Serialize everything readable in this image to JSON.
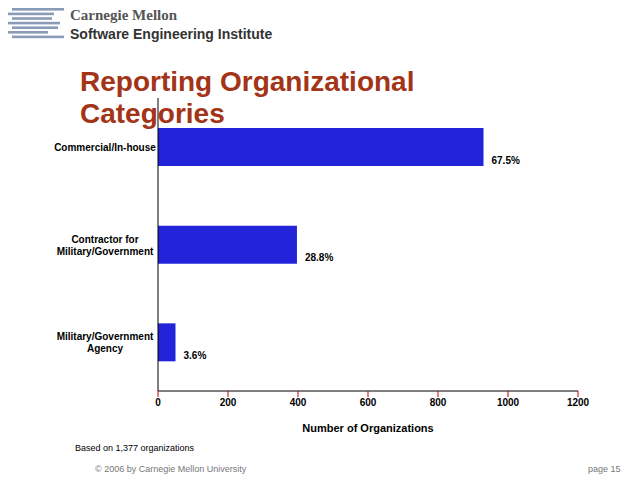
{
  "header": {
    "organization": "Carnegie Mellon",
    "institute": "Software Engineering Institute"
  },
  "chart_data": {
    "type": "bar",
    "orientation": "horizontal",
    "title": "Reporting Organizational Categories",
    "categories": [
      "Commercial/In-house",
      "Contractor for Military/Government",
      "Military/Government Agency"
    ],
    "values": [
      930,
      397,
      50
    ],
    "value_labels": [
      "67.5%",
      "28.8%",
      "3.6%"
    ],
    "data_labels": true,
    "color": "#2323d9",
    "x_label": "Number of Organizations",
    "xlim": [
      0,
      1200
    ],
    "xticks": [
      0,
      200,
      400,
      600,
      800,
      1000,
      1200
    ],
    "grid": false,
    "footnote": "Based on 1,377 organizations"
  },
  "footer": {
    "copyright": "© 2006 by Carnegie Mellon University",
    "page": "page 15"
  }
}
